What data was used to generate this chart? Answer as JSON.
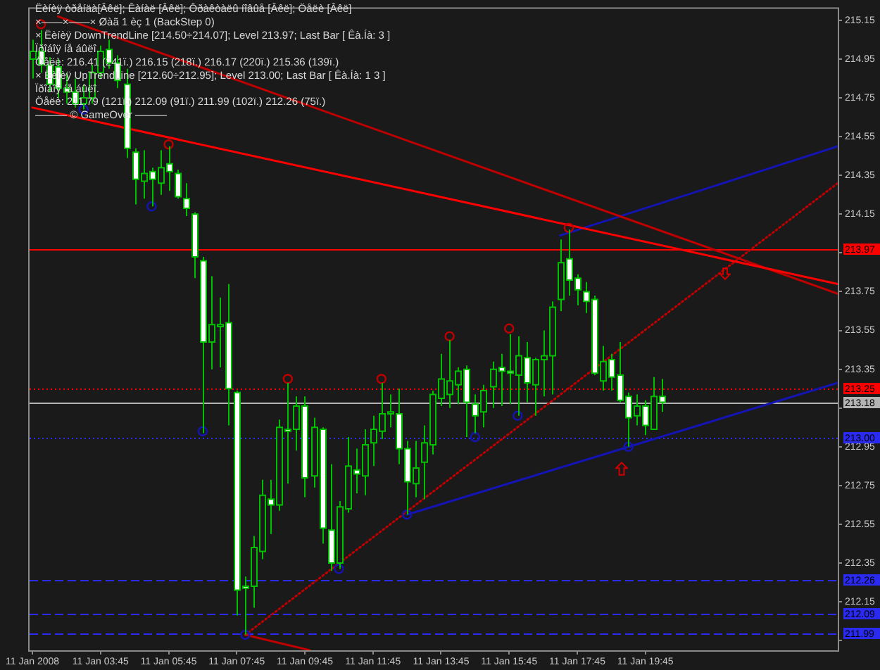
{
  "chart_data": {
    "type": "candlestick",
    "xlim": [
      "2008-01-11T01:40",
      "2008-01-12T01:24"
    ],
    "xticks": [
      {
        "value": "2008-01-11T01:45",
        "label": "11 Jan 2008"
      },
      {
        "value": "2008-01-11T03:45",
        "label": "11 Jan 03:45"
      },
      {
        "value": "2008-01-11T05:45",
        "label": "11 Jan 05:45"
      },
      {
        "value": "2008-01-11T07:45",
        "label": "11 Jan 07:45"
      },
      {
        "value": "2008-01-11T09:45",
        "label": "11 Jan 09:45"
      },
      {
        "value": "2008-01-11T11:45",
        "label": "11 Jan 11:45"
      },
      {
        "value": "2008-01-11T13:45",
        "label": "11 Jan 13:45"
      },
      {
        "value": "2008-01-11T15:45",
        "label": "11 Jan 15:45"
      },
      {
        "value": "2008-01-11T17:45",
        "label": "11 Jan 17:45"
      },
      {
        "value": "2008-01-11T19:45",
        "label": "11 Jan 19:45"
      }
    ],
    "ylim": [
      211.9,
      215.21
    ],
    "yticks": [
      {
        "value": 211.95,
        "label": null
      },
      212.15,
      212.35,
      212.55,
      212.75,
      212.95,
      {
        "value": 213.15,
        "label": null
      },
      213.35,
      213.55,
      213.75,
      {
        "value": 213.95,
        "label": null
      },
      214.15,
      214.35,
      214.55,
      214.75,
      214.95,
      215.15
    ],
    "series": [
      {
        "color": "#00c000",
        "colors": [
          "#1a1a1a",
          "#ffffff",
          "#ffffff",
          "#ffffff",
          "#ffffff",
          "#ffffff",
          "#1a1a1a",
          "#1a1a1a",
          "#1a1a1a",
          "#ffffff",
          "#ffffff",
          "#ffffff",
          "#ffffff",
          "#1a1a1a",
          "#ffffff",
          "#1a1a1a",
          "#ffffff",
          "#ffffff",
          "#ffffff",
          "#ffffff",
          "#ffffff",
          "#1a1a1a",
          "#1a1a1a",
          "#ffffff",
          "#ffffff",
          "#ffffff",
          "#1a1a1a",
          "#1a1a1a",
          "#ffffff",
          "#1a1a1a",
          "#ffffff",
          "#1a1a1a",
          "#ffffff",
          "#1a1a1a",
          "#ffffff",
          "#ffffff",
          "#1a1a1a",
          "#1a1a1a",
          "#ffffff",
          "#1a1a1a",
          "#1a1a1a",
          "#1a1a1a",
          "#1a1a1a",
          "#ffffff",
          "#ffffff",
          "#1a1a1a",
          "#1a1a1a",
          "#1a1a1a",
          "#1a1a1a",
          "#1a1a1a",
          "#1a1a1a",
          "#ffffff",
          "#ffffff",
          "#1a1a1a",
          "#1a1a1a",
          "#ffffff",
          "#ffffff",
          "#1a1a1a",
          "#ffffff",
          "#1a1a1a",
          "#1a1a1a",
          "#1a1a1a",
          "#1a1a1a",
          "#ffffff",
          "#ffffff",
          "#ffffff",
          "#ffffff",
          "#1a1a1a",
          "#ffffff",
          "#ffffff",
          "#ffffff",
          "#1a1a1a",
          "#ffffff",
          "#1a1a1a",
          "#ffffff"
        ],
        "x": [
          "2008-01-11T01:45",
          "2008-01-11T02:00",
          "2008-01-11T02:15",
          "2008-01-11T02:30",
          "2008-01-11T02:45",
          "2008-01-11T03:00",
          "2008-01-11T03:15",
          "2008-01-11T03:30",
          "2008-01-11T03:45",
          "2008-01-11T04:00",
          "2008-01-11T04:15",
          "2008-01-11T04:30",
          "2008-01-11T04:45",
          "2008-01-11T05:00",
          "2008-01-11T05:15",
          "2008-01-11T05:30",
          "2008-01-11T05:45",
          "2008-01-11T06:00",
          "2008-01-11T06:15",
          "2008-01-11T06:30",
          "2008-01-11T06:45",
          "2008-01-11T07:00",
          "2008-01-11T07:15",
          "2008-01-11T07:30",
          "2008-01-11T07:45",
          "2008-01-11T08:00",
          "2008-01-11T08:15",
          "2008-01-11T08:30",
          "2008-01-11T08:45",
          "2008-01-11T09:00",
          "2008-01-11T09:15",
          "2008-01-11T09:30",
          "2008-01-11T09:45",
          "2008-01-11T10:00",
          "2008-01-11T10:15",
          "2008-01-11T10:30",
          "2008-01-11T10:45",
          "2008-01-11T11:00",
          "2008-01-11T11:15",
          "2008-01-11T11:30",
          "2008-01-11T11:45",
          "2008-01-11T12:00",
          "2008-01-11T12:15",
          "2008-01-11T12:30",
          "2008-01-11T12:45",
          "2008-01-11T13:00",
          "2008-01-11T13:15",
          "2008-01-11T13:30",
          "2008-01-11T13:45",
          "2008-01-11T14:00",
          "2008-01-11T14:15",
          "2008-01-11T14:30",
          "2008-01-11T14:45",
          "2008-01-11T15:00",
          "2008-01-11T15:15",
          "2008-01-11T15:30",
          "2008-01-11T15:45",
          "2008-01-11T16:00",
          "2008-01-11T16:15",
          "2008-01-11T16:30",
          "2008-01-11T16:45",
          "2008-01-11T17:00",
          "2008-01-11T17:15",
          "2008-01-11T17:30",
          "2008-01-11T17:45",
          "2008-01-11T18:00",
          "2008-01-11T18:15",
          "2008-01-11T18:30",
          "2008-01-11T18:45",
          "2008-01-11T19:00",
          "2008-01-11T19:15",
          "2008-01-11T19:30",
          "2008-01-11T19:45",
          "2008-01-11T20:00",
          "2008-01-11T20:15"
        ],
        "ohlc": [
          [
            214.95,
            215.05,
            214.85,
            214.99
          ],
          [
            214.99,
            215.1,
            214.88,
            214.92
          ],
          [
            214.92,
            214.96,
            214.78,
            214.82
          ],
          [
            214.91,
            214.95,
            214.75,
            214.8
          ],
          [
            214.8,
            214.88,
            214.72,
            214.78
          ],
          [
            214.78,
            214.85,
            214.7,
            214.72
          ],
          [
            214.72,
            214.82,
            214.69,
            214.75
          ],
          [
            214.75,
            214.92,
            214.72,
            214.88
          ],
          [
            214.88,
            215.02,
            214.85,
            214.99
          ],
          [
            215.0,
            215.05,
            214.9,
            214.93
          ],
          [
            214.93,
            214.97,
            214.8,
            214.84
          ],
          [
            214.82,
            214.9,
            214.44,
            214.49
          ],
          [
            214.47,
            214.49,
            214.2,
            214.33
          ],
          [
            214.32,
            214.48,
            214.23,
            214.36
          ],
          [
            214.37,
            214.39,
            214.19,
            214.33
          ],
          [
            214.31,
            214.48,
            214.25,
            214.39
          ],
          [
            214.41,
            214.5,
            214.27,
            214.37
          ],
          [
            214.36,
            214.38,
            214.23,
            214.24
          ],
          [
            214.23,
            214.31,
            214.14,
            214.18
          ],
          [
            214.15,
            214.16,
            213.82,
            213.93
          ],
          [
            213.91,
            213.93,
            213.02,
            213.49
          ],
          [
            213.49,
            213.83,
            213.35,
            213.58
          ],
          [
            213.57,
            213.72,
            213.36,
            213.58
          ],
          [
            213.59,
            213.79,
            213.06,
            213.25
          ],
          [
            213.23,
            213.24,
            212.08,
            212.21
          ],
          [
            212.23,
            212.28,
            211.98,
            212.22
          ],
          [
            212.23,
            212.49,
            212.12,
            212.43
          ],
          [
            212.41,
            212.78,
            212.37,
            212.7
          ],
          [
            212.68,
            212.78,
            212.5,
            212.65
          ],
          [
            212.65,
            213.09,
            212.62,
            213.05
          ],
          [
            213.04,
            213.28,
            212.76,
            213.03
          ],
          [
            213.04,
            213.21,
            212.93,
            213.16
          ],
          [
            213.16,
            213.21,
            212.69,
            212.79
          ],
          [
            212.8,
            213.1,
            212.74,
            213.05
          ],
          [
            213.04,
            213.05,
            212.45,
            212.53
          ],
          [
            212.52,
            212.86,
            212.31,
            212.35
          ],
          [
            212.35,
            212.67,
            212.32,
            212.64
          ],
          [
            212.63,
            213.0,
            212.61,
            212.85
          ],
          [
            212.83,
            212.94,
            212.71,
            212.81
          ],
          [
            212.8,
            213.04,
            212.7,
            212.96
          ],
          [
            212.97,
            213.11,
            212.85,
            213.04
          ],
          [
            213.03,
            213.28,
            212.99,
            213.12
          ],
          [
            213.12,
            213.22,
            213.05,
            213.13
          ],
          [
            213.12,
            213.25,
            212.86,
            212.94
          ],
          [
            212.94,
            212.98,
            212.6,
            212.77
          ],
          [
            212.76,
            212.98,
            212.69,
            212.84
          ],
          [
            212.87,
            213.06,
            212.68,
            212.97
          ],
          [
            212.96,
            213.24,
            212.91,
            213.22
          ],
          [
            213.2,
            213.43,
            213.16,
            213.3
          ],
          [
            213.22,
            213.5,
            213.15,
            213.29
          ],
          [
            213.27,
            213.36,
            213.17,
            213.34
          ],
          [
            213.35,
            213.37,
            213.0,
            213.18
          ],
          [
            213.17,
            213.22,
            213.02,
            213.11
          ],
          [
            213.13,
            213.27,
            213.05,
            213.24
          ],
          [
            213.26,
            213.39,
            213.15,
            213.35
          ],
          [
            213.36,
            213.43,
            213.16,
            213.34
          ],
          [
            213.34,
            213.53,
            213.17,
            213.33
          ],
          [
            213.32,
            213.52,
            213.11,
            213.42
          ],
          [
            213.41,
            213.49,
            213.18,
            213.28
          ],
          [
            213.27,
            213.41,
            213.11,
            213.4
          ],
          [
            213.4,
            213.55,
            213.21,
            213.42
          ],
          [
            213.42,
            213.7,
            213.22,
            213.67
          ],
          [
            213.71,
            214.02,
            213.65,
            213.9
          ],
          [
            213.92,
            214.07,
            213.73,
            213.81
          ],
          [
            213.82,
            213.84,
            213.68,
            213.76
          ],
          [
            213.75,
            213.8,
            213.64,
            213.7
          ],
          [
            213.71,
            213.73,
            213.32,
            213.33
          ],
          [
            213.29,
            213.47,
            213.24,
            213.39
          ],
          [
            213.4,
            213.43,
            213.24,
            213.31
          ],
          [
            213.32,
            213.49,
            213.18,
            213.19
          ],
          [
            213.21,
            213.23,
            212.95,
            213.1
          ],
          [
            213.11,
            213.22,
            213.06,
            213.16
          ],
          [
            213.16,
            213.19,
            213.01,
            213.06
          ],
          [
            213.04,
            213.31,
            213.04,
            213.21
          ],
          [
            213.21,
            213.3,
            213.13,
            213.18
          ]
        ]
      },
      {
        "type": "line",
        "color": "#ff0000",
        "x": [
          "2008-01-11T01:45",
          "2008-01-12T01:24"
        ],
        "values": [
          214.7,
          213.79
        ]
      },
      {
        "type": "line",
        "color": "#c00000",
        "x": [
          "2008-01-11T02:30",
          "2008-01-12T01:24"
        ],
        "values": [
          215.17,
          213.74
        ]
      },
      {
        "type": "line",
        "color": "#c00000",
        "line_style": "dotted",
        "x": [
          "2008-01-11T08:00",
          "2008-01-12T01:24"
        ],
        "values": [
          211.98,
          214.31
        ]
      },
      {
        "type": "line",
        "color": "#c00000",
        "x": [
          "2008-01-11T08:00",
          "2008-01-11T09:54"
        ],
        "values": [
          211.98,
          211.9
        ]
      },
      {
        "type": "line",
        "color": "#1414b4",
        "x": [
          "2008-01-11T12:45",
          "2008-01-12T01:24"
        ],
        "values": [
          212.6,
          213.28
        ]
      },
      {
        "type": "line",
        "color": "#1414b4",
        "x": [
          "2008-01-11T17:15",
          "2008-01-12T01:24"
        ],
        "values": [
          214.04,
          214.5
        ]
      },
      {
        "type": "scatter",
        "marker": "circle",
        "color": "#c00000",
        "x": [
          "2008-01-11T02:00",
          "2008-01-11T05:45",
          "2008-01-11T09:15",
          "2008-01-11T12:00",
          "2008-01-11T14:00",
          "2008-01-11T15:45",
          "2008-01-11T17:30"
        ],
        "values": [
          215.13,
          214.51,
          213.3,
          213.3,
          213.52,
          213.56,
          214.08
        ]
      },
      {
        "type": "scatter",
        "marker": "circle",
        "color": "#1414b4",
        "x": [
          "2008-01-11T03:15",
          "2008-01-11T05:15",
          "2008-01-11T06:45",
          "2008-01-11T08:00",
          "2008-01-11T10:45",
          "2008-01-11T12:45",
          "2008-01-11T14:45",
          "2008-01-11T16:00",
          "2008-01-11T19:15"
        ],
        "values": [
          214.69,
          214.19,
          213.03,
          211.98,
          212.32,
          212.6,
          213.0,
          213.11,
          212.95
        ]
      }
    ],
    "ref_lines": [
      {
        "axis": "y",
        "value": 213.97,
        "label": "213.97",
        "color": "#ff0000",
        "line_style": "solid"
      },
      {
        "axis": "y",
        "value": 213.25,
        "label": "213.25",
        "color": "#ff0000",
        "line_style": "dotted"
      },
      {
        "axis": "y",
        "value": 213.18,
        "label": "213.18",
        "color": "#b4b4b4",
        "line_style": "solid"
      },
      {
        "axis": "y",
        "value": 213.0,
        "label": "213.00",
        "color": "#2a2af0",
        "line_style": "dotted"
      },
      {
        "axis": "y",
        "value": 212.26,
        "label": "212.26",
        "color": "#2a2af0",
        "line_style": "dashed"
      },
      {
        "axis": "y",
        "value": 212.09,
        "label": "212.09",
        "color": "#2a2af0",
        "line_style": "dashed"
      },
      {
        "axis": "y",
        "value": 211.99,
        "label": "211.99",
        "color": "#2a2af0",
        "line_style": "dashed"
      }
    ],
    "annotations": [
      "Ëèíèÿ òðåíäà[Âêë]; Êàíàë [Âêë]; Ôðàêòàëû íîâûå [Âêë]; Öåëè [Âêë]",
      "×——×——× Øàã 1 èç 1 (BackStep 0)",
      "× Ëèíèÿ DownTrendLine [214.50÷214.07]; Level 213.97; Last Bar [ Êà.Íà: 3 ]",
      "Ïðîáîÿ íå áûëî.",
      "Öåëè: 216.41 (241ï.) 216.15 (218ï.) 216.17 (220ï.) 215.36 (139ï.)",
      "× Ëèíèÿ UpTrendLine [212.60÷212.95]; Level 213.00; Last Bar [ Êà.Íà: 1 3 ]",
      "Ïðîáîÿ íå áûëî.",
      "Öåëè: 211.79 (121ï.) 212.09 (91ï.) 211.99 (102ï.) 212.26 (75ï.)",
      "——— © GameOver ———"
    ]
  }
}
